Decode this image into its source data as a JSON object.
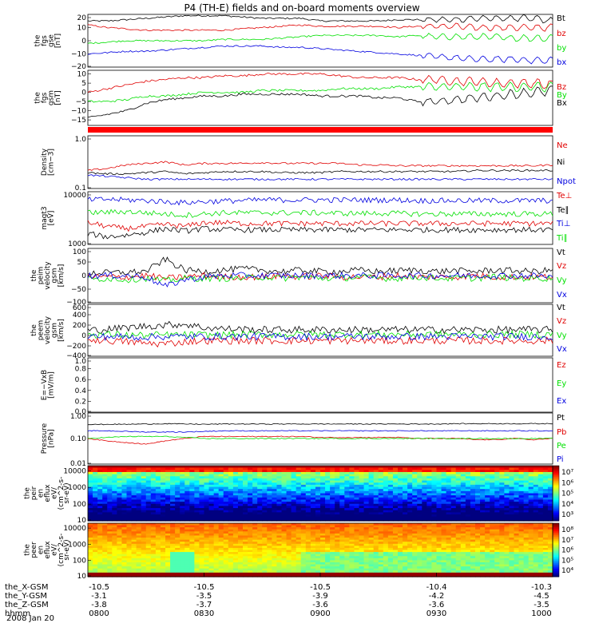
{
  "title": "P4 (TH-E) fields and on-board moments overview",
  "date": "2008 Jan 20",
  "colors": {
    "black": "#000000",
    "red": "#e00000",
    "green": "#00e000",
    "blue": "#0000e0"
  },
  "chart_data": [
    {
      "id": "fgs_gse",
      "type": "line",
      "ylabel": [
        "the",
        "fgs",
        "gse",
        "[nT]"
      ],
      "ylim": [
        -20,
        20
      ],
      "yticks": [
        "20",
        "10",
        "0",
        "−10",
        "−20"
      ],
      "series": [
        {
          "name": "Bt",
          "color": "black",
          "values": [
            15,
            15,
            16,
            17,
            18,
            19,
            19,
            19,
            18,
            17,
            17,
            17,
            15,
            15,
            15,
            15,
            16,
            16,
            16,
            16,
            17,
            17,
            17,
            17,
            15
          ]
        },
        {
          "name": "bz",
          "color": "red",
          "values": [
            12,
            10,
            9,
            8,
            8,
            8,
            8,
            8,
            9,
            10,
            11,
            12,
            11,
            11,
            11,
            11,
            10,
            11,
            11,
            11,
            10,
            10,
            10,
            10,
            10
          ]
        },
        {
          "name": "by",
          "color": "green",
          "values": [
            -2,
            -1,
            0,
            0,
            0,
            0,
            0,
            1,
            1,
            1,
            2,
            3,
            4,
            4,
            4,
            4,
            3,
            4,
            3,
            3,
            3,
            3,
            2,
            2,
            2
          ]
        },
        {
          "name": "bx",
          "color": "blue",
          "values": [
            -10,
            -9,
            -8,
            -8,
            -7,
            -6,
            -5,
            -4,
            -4,
            -4,
            -5,
            -5,
            -6,
            -7,
            -8,
            -9,
            -10,
            -11,
            -12,
            -13,
            -14,
            -14,
            -14,
            -15,
            -15
          ]
        }
      ]
    },
    {
      "id": "fgs_gsm",
      "type": "line",
      "ylabel": [
        "the",
        "fgs",
        "gsm",
        "[nT]"
      ],
      "ylim": [
        -18,
        12
      ],
      "yticks": [
        "10",
        "5",
        "0",
        "−5",
        "−10",
        "−15"
      ],
      "series": [
        {
          "name": "Bz",
          "color": "red",
          "values": [
            0,
            2,
            4,
            6,
            7,
            8,
            8,
            9,
            9,
            10,
            10,
            10,
            10,
            9,
            8,
            8,
            8,
            7,
            7,
            6,
            6,
            5,
            5,
            5,
            4
          ]
        },
        {
          "name": "By",
          "color": "green",
          "values": [
            -5,
            -5,
            -4,
            -2,
            -2,
            -1,
            0,
            0,
            0,
            1,
            1,
            1,
            1,
            2,
            2,
            2,
            3,
            3,
            3,
            3,
            3,
            3,
            3,
            3,
            3
          ]
        },
        {
          "name": "Bx",
          "color": "black",
          "values": [
            -14,
            -12,
            -10,
            -6,
            -4,
            -3,
            -2,
            -2,
            -1,
            -1,
            -1,
            -1,
            -2,
            -2,
            -2,
            -3,
            -3,
            -5,
            -5,
            -4,
            -3,
            -2,
            -1,
            0,
            1
          ]
        }
      ]
    },
    {
      "id": "density",
      "type": "line",
      "ylabel": [
        "Density",
        "[cm−3]"
      ],
      "ylim": [
        0.1,
        1.0
      ],
      "yscale": "log",
      "yticks": [
        "1.0",
        "0.1"
      ],
      "series": [
        {
          "name": "Ne",
          "color": "red",
          "values": [
            0.22,
            0.24,
            0.28,
            0.3,
            0.32,
            0.28,
            0.3,
            0.3,
            0.3,
            0.31,
            0.3,
            0.3,
            0.3,
            0.3,
            0.28,
            0.28,
            0.27,
            0.27,
            0.27,
            0.27,
            0.27,
            0.27,
            0.27,
            0.27,
            0.28
          ]
        },
        {
          "name": "Ni",
          "color": "black",
          "values": [
            0.2,
            0.19,
            0.19,
            0.2,
            0.21,
            0.19,
            0.2,
            0.21,
            0.21,
            0.21,
            0.2,
            0.2,
            0.2,
            0.21,
            0.21,
            0.21,
            0.21,
            0.21,
            0.21,
            0.21,
            0.22,
            0.22,
            0.22,
            0.22,
            0.22
          ]
        },
        {
          "name": "Npot",
          "color": "blue",
          "values": [
            0.18,
            0.17,
            0.16,
            0.15,
            0.15,
            0.15,
            0.15,
            0.15,
            0.15,
            0.15,
            0.15,
            0.15,
            0.15,
            0.15,
            0.15,
            0.15,
            0.15,
            0.15,
            0.15,
            0.15,
            0.15,
            0.15,
            0.15,
            0.15,
            0.15
          ]
        }
      ]
    },
    {
      "id": "temperature",
      "type": "line",
      "ylabel": [
        "magt3",
        "[eV]"
      ],
      "ylim": [
        1000,
        10000
      ],
      "yscale": "log",
      "yticks": [
        "10000",
        "1000"
      ],
      "series": [
        {
          "name": "Te⊥",
          "color": "red",
          "values": [
            2600,
            2200,
            2000,
            2200,
            2400,
            2200,
            2600,
            2600,
            2500,
            2500,
            2500,
            2500,
            2500,
            2500,
            2500,
            2500,
            2500,
            2500,
            2500,
            2500,
            2500,
            2500,
            2500,
            2500,
            2500
          ]
        },
        {
          "name": "Te∥",
          "color": "black",
          "values": [
            1600,
            1400,
            1500,
            1700,
            2000,
            1800,
            2000,
            1900,
            1900,
            1900,
            1900,
            1900,
            1900,
            1900,
            1900,
            1900,
            1900,
            1900,
            1900,
            1900,
            1900,
            1900,
            1900,
            1900,
            1900
          ]
        },
        {
          "name": "Ti⊥",
          "color": "blue",
          "values": [
            7000,
            7200,
            7000,
            6800,
            6500,
            6200,
            6500,
            6700,
            6800,
            7000,
            7000,
            7000,
            7000,
            7000,
            7000,
            7000,
            7000,
            6800,
            6800,
            6800,
            6800,
            6800,
            6800,
            6800,
            6800
          ]
        },
        {
          "name": "Ti∥",
          "color": "green",
          "values": [
            4000,
            4100,
            4200,
            4000,
            3800,
            3600,
            3800,
            4000,
            4000,
            4000,
            4000,
            4000,
            4000,
            3900,
            3900,
            3900,
            3900,
            3800,
            3800,
            3800,
            3800,
            3800,
            3800,
            3800,
            3800
          ]
        }
      ]
    },
    {
      "id": "peim_velocity",
      "type": "line",
      "ylabel": [
        "the",
        "peim",
        "velocity",
        "gsm",
        "[km/s]"
      ],
      "ylim": [
        -100,
        100
      ],
      "yticks": [
        "100",
        "50",
        "0",
        "−50",
        "−100"
      ],
      "series": [
        {
          "name": "Vt",
          "color": "black",
          "values": [
            10,
            10,
            12,
            15,
            60,
            20,
            15,
            20,
            25,
            20,
            15,
            20,
            15,
            15,
            20,
            15,
            18,
            20,
            15,
            18,
            15,
            20,
            18,
            15,
            20
          ]
        },
        {
          "name": "Vz",
          "color": "red",
          "values": [
            -5,
            -5,
            -5,
            0,
            -10,
            -5,
            0,
            -5,
            -5,
            -5,
            0,
            -5,
            0,
            -5,
            -5,
            -5,
            0,
            -5,
            -5,
            -5,
            0,
            -5,
            -5,
            -5,
            -5
          ]
        },
        {
          "name": "Vy",
          "color": "green",
          "values": [
            -15,
            -10,
            -15,
            -10,
            -20,
            -10,
            -10,
            -10,
            -10,
            -5,
            -10,
            -5,
            -10,
            -10,
            -5,
            -10,
            -10,
            -5,
            -10,
            -10,
            -10,
            -5,
            -10,
            -10,
            -10
          ]
        },
        {
          "name": "Vx",
          "color": "blue",
          "values": [
            0,
            0,
            0,
            -5,
            -40,
            -15,
            -5,
            0,
            0,
            0,
            0,
            0,
            0,
            0,
            0,
            0,
            0,
            0,
            0,
            0,
            0,
            0,
            0,
            0,
            -5
          ]
        }
      ]
    },
    {
      "id": "peem_velocity",
      "type": "line",
      "ylabel": [
        "the",
        "peem",
        "velocity",
        "gsm",
        "[km/s]"
      ],
      "ylim": [
        -400,
        600
      ],
      "yticks": [
        "600",
        "400",
        "200",
        "0",
        "−200",
        "−400"
      ],
      "series": [
        {
          "name": "Vt",
          "color": "black",
          "values": [
            100,
            120,
            150,
            180,
            200,
            220,
            150,
            130,
            120,
            110,
            110,
            110,
            110,
            110,
            110,
            110,
            110,
            110,
            110,
            110,
            110,
            110,
            110,
            110,
            110
          ]
        },
        {
          "name": "Vz",
          "color": "red",
          "values": [
            -80,
            -100,
            -120,
            -150,
            -160,
            -120,
            -100,
            -100,
            -100,
            -100,
            -100,
            -100,
            -100,
            -100,
            -100,
            -100,
            -100,
            -100,
            -100,
            -100,
            -100,
            -100,
            -100,
            -100,
            -100
          ]
        },
        {
          "name": "Vy",
          "color": "green",
          "values": [
            20,
            20,
            10,
            0,
            10,
            10,
            10,
            10,
            20,
            20,
            20,
            20,
            20,
            20,
            20,
            20,
            20,
            20,
            20,
            20,
            20,
            20,
            20,
            20,
            20
          ]
        },
        {
          "name": "Vx",
          "color": "blue",
          "values": [
            -20,
            -20,
            -30,
            -30,
            -20,
            -20,
            -20,
            -20,
            -20,
            -20,
            -20,
            -20,
            -20,
            -20,
            -20,
            -20,
            -20,
            -20,
            -20,
            -20,
            -20,
            -20,
            -20,
            -20,
            -20
          ]
        }
      ]
    },
    {
      "id": "efield",
      "type": "line",
      "ylabel": [
        "E=−VxB",
        "[mV/m]"
      ],
      "ylim": [
        0,
        1.0
      ],
      "yticks": [
        "1.0",
        "0.8",
        "0.6",
        "0.4",
        "0.2",
        "0.0"
      ],
      "series": [
        {
          "name": "Ez",
          "color": "red",
          "values": []
        },
        {
          "name": "Ey",
          "color": "green",
          "values": []
        },
        {
          "name": "Ex",
          "color": "blue",
          "values": []
        }
      ]
    },
    {
      "id": "pressure",
      "type": "line",
      "ylabel": [
        "Pressure",
        "[nPa]"
      ],
      "ylim": [
        0.01,
        1.0
      ],
      "yscale": "log",
      "yticks": [
        "1.00",
        "0.10",
        "0.01"
      ],
      "series": [
        {
          "name": "Pt",
          "color": "black",
          "values": [
            0.35,
            0.36,
            0.36,
            0.37,
            0.38,
            0.37,
            0.36,
            0.37,
            0.37,
            0.37,
            0.37,
            0.37,
            0.37,
            0.37,
            0.37,
            0.37,
            0.37,
            0.37,
            0.37,
            0.38,
            0.38,
            0.38,
            0.38,
            0.38,
            0.38
          ]
        },
        {
          "name": "Pb",
          "color": "red",
          "values": [
            0.1,
            0.08,
            0.07,
            0.06,
            0.08,
            0.1,
            0.12,
            0.12,
            0.12,
            0.12,
            0.12,
            0.12,
            0.11,
            0.11,
            0.11,
            0.11,
            0.11,
            0.1,
            0.1,
            0.1,
            0.09,
            0.09,
            0.1,
            0.09,
            0.1
          ]
        },
        {
          "name": "Pe",
          "color": "green",
          "values": [
            0.1,
            0.11,
            0.12,
            0.12,
            0.12,
            0.11,
            0.1,
            0.1,
            0.1,
            0.1,
            0.1,
            0.1,
            0.1,
            0.1,
            0.1,
            0.1,
            0.1,
            0.1,
            0.1,
            0.1,
            0.1,
            0.1,
            0.1,
            0.1,
            0.1
          ]
        },
        {
          "name": "Pi",
          "color": "blue",
          "values": [
            0.2,
            0.2,
            0.19,
            0.18,
            0.18,
            0.18,
            0.19,
            0.2,
            0.2,
            0.2,
            0.2,
            0.2,
            0.2,
            0.2,
            0.2,
            0.2,
            0.2,
            0.2,
            0.2,
            0.2,
            0.2,
            0.2,
            0.2,
            0.2,
            0.2
          ]
        }
      ]
    },
    {
      "id": "peir_flux",
      "type": "heatmap",
      "ylabel": [
        "the",
        "peir",
        "en",
        "eflux",
        "eV/",
        "(cm^2-s-",
        "sr-eV)"
      ],
      "ylim": [
        10,
        20000
      ],
      "yscale": "log",
      "yticks": [
        "10000",
        "1000",
        "100",
        "10"
      ],
      "colorbar": {
        "ticks": [
          "10⁷",
          "10⁶",
          "10⁵",
          "10⁴",
          "10³"
        ],
        "range": [
          1000,
          10000000
        ]
      }
    },
    {
      "id": "peer_flux",
      "type": "heatmap",
      "ylabel": [
        "the",
        "peer",
        "en",
        "eflux",
        "eV/",
        "(cm^2-s-",
        "sr-eV)"
      ],
      "ylim": [
        10,
        20000
      ],
      "yscale": "log",
      "yticks": [
        "10000",
        "1000",
        "100",
        "10"
      ],
      "colorbar": {
        "ticks": [
          "10⁸",
          "10⁷",
          "10⁶",
          "10⁵",
          "10⁴"
        ],
        "range": [
          10000,
          100000000
        ]
      }
    }
  ],
  "xaxis": {
    "labels": [
      "the_X-GSM",
      "the_Y-GSM",
      "the_Z-GSM",
      "hhmm"
    ],
    "ticks": [
      {
        "time": "0800",
        "x": "-10.5",
        "y": "-3.1",
        "z": "-3.8"
      },
      {
        "time": "0830",
        "x": "-10.5",
        "y": "-3.5",
        "z": "-3.7"
      },
      {
        "time": "0900",
        "x": "-10.5",
        "y": "-3.9",
        "z": "-3.6"
      },
      {
        "time": "0930",
        "x": "-10.4",
        "y": "-4.2",
        "z": "-3.6"
      },
      {
        "time": "1000",
        "x": "-10.3",
        "y": "-4.5",
        "z": "-3.5"
      }
    ]
  }
}
